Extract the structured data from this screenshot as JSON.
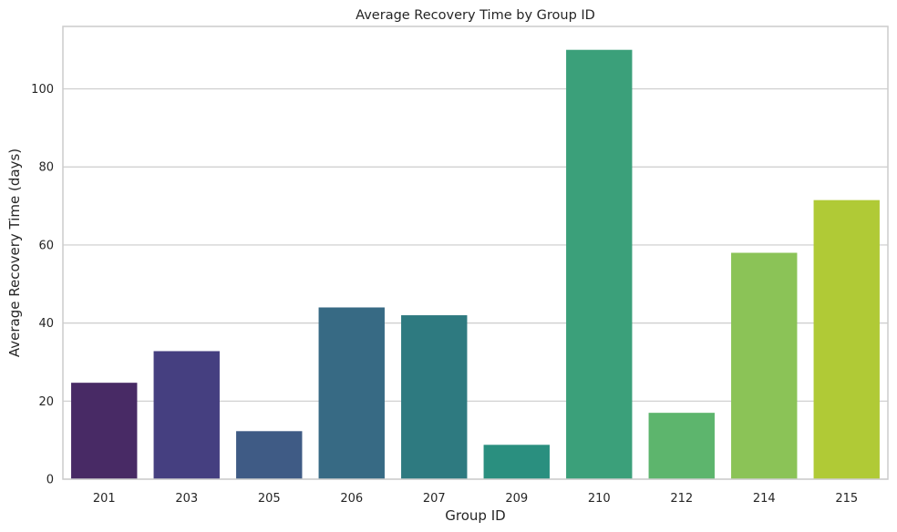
{
  "chart_data": {
    "type": "bar",
    "title": "Average Recovery Time by Group ID",
    "xlabel": "Group ID",
    "ylabel": "Average Recovery Time (days)",
    "categories": [
      "201",
      "203",
      "205",
      "206",
      "207",
      "209",
      "210",
      "212",
      "214",
      "215"
    ],
    "values": [
      24.7,
      32.8,
      12.3,
      44.0,
      42.0,
      8.8,
      110.0,
      17.0,
      58.0,
      71.5
    ],
    "colors": [
      "#482a65",
      "#453f80",
      "#3f5b85",
      "#376a84",
      "#2e7a80",
      "#2a8f7f",
      "#3ba07a",
      "#5db56d",
      "#8bc357",
      "#b0ca36"
    ],
    "ylim": [
      0,
      116
    ],
    "yticks": [
      0,
      20,
      40,
      60,
      80,
      100
    ],
    "grid": true,
    "legend": "none"
  }
}
